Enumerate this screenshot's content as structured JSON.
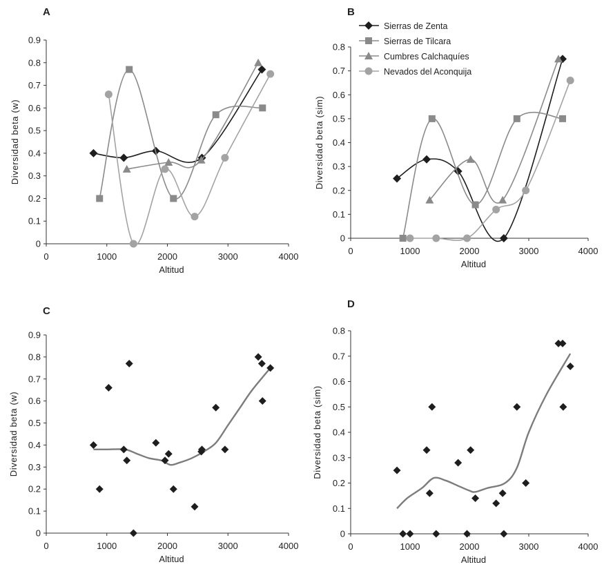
{
  "colors": {
    "dark": "#1e1e1e",
    "grey": "#8a8a8a",
    "grey_light": "#a3a3a3",
    "axis": "#333333"
  },
  "legend": {
    "items": [
      {
        "label": "Sierras de Zenta",
        "marker": "diamond",
        "color": "#1e1e1e"
      },
      {
        "label": "Sierras de Tilcara",
        "marker": "square",
        "color": "#8a8a8a"
      },
      {
        "label": "Cumbres Calchaquíes",
        "marker": "triangle",
        "color": "#8a8a8a"
      },
      {
        "label": "Nevados del Aconquija",
        "marker": "circle",
        "color": "#a3a3a3"
      }
    ]
  },
  "chart_data": [
    {
      "panel": "A",
      "type": "line",
      "xlabel": "Altitud",
      "ylabel": "Diversidad beta (w)",
      "xlim": [
        0,
        4000
      ],
      "ylim": [
        0,
        0.9
      ],
      "xticks": [
        0,
        1000,
        2000,
        3000,
        4000
      ],
      "yticks": [
        0,
        0.1,
        0.2,
        0.3,
        0.4,
        0.5,
        0.6,
        0.7,
        0.8,
        0.9
      ],
      "series": [
        {
          "name": "Sierras de Zenta",
          "marker": "diamond",
          "x": [
            780,
            1280,
            1810,
            2570,
            3560
          ],
          "y": [
            0.4,
            0.38,
            0.41,
            0.38,
            0.77
          ]
        },
        {
          "name": "Sierras de Tilcara",
          "marker": "square",
          "x": [
            880,
            1370,
            2100,
            2800,
            3570
          ],
          "y": [
            0.2,
            0.77,
            0.2,
            0.57,
            0.6
          ]
        },
        {
          "name": "Cumbres Calchaquíes",
          "marker": "triangle",
          "x": [
            1330,
            2020,
            2560,
            3500
          ],
          "y": [
            0.33,
            0.36,
            0.37,
            0.8
          ]
        },
        {
          "name": "Nevados del Aconquija",
          "marker": "circle",
          "x": [
            1030,
            1440,
            1960,
            2450,
            2950,
            3700
          ],
          "y": [
            0.66,
            0.0,
            0.33,
            0.12,
            0.38,
            0.75
          ]
        }
      ]
    },
    {
      "panel": "B",
      "type": "line",
      "xlabel": "Altitud",
      "ylabel": "Diversidad beta (sim)",
      "xlim": [
        0,
        4000
      ],
      "ylim": [
        0,
        0.8
      ],
      "xticks": [
        0,
        1000,
        2000,
        3000,
        4000
      ],
      "yticks": [
        0,
        0.1,
        0.2,
        0.3,
        0.4,
        0.5,
        0.6,
        0.7,
        0.8
      ],
      "series": [
        {
          "name": "Sierras de Zenta",
          "marker": "diamond",
          "x": [
            780,
            1280,
            1810,
            2580,
            3570
          ],
          "y": [
            0.25,
            0.33,
            0.28,
            0.0,
            0.75
          ]
        },
        {
          "name": "Sierras de Tilcara",
          "marker": "square",
          "x": [
            880,
            1370,
            2100,
            2800,
            3570
          ],
          "y": [
            0.0,
            0.5,
            0.14,
            0.5,
            0.5
          ]
        },
        {
          "name": "Cumbres Calchaquíes",
          "marker": "triangle",
          "x": [
            1330,
            2020,
            2560,
            3500
          ],
          "y": [
            0.16,
            0.33,
            0.16,
            0.75
          ]
        },
        {
          "name": "Nevados del Aconquija",
          "marker": "circle",
          "x": [
            1000,
            1440,
            1960,
            2450,
            2950,
            3700
          ],
          "y": [
            0.0,
            0.0,
            0.0,
            0.12,
            0.2,
            0.66
          ]
        }
      ]
    },
    {
      "panel": "C",
      "type": "scatter",
      "xlabel": "Altitud",
      "ylabel": "Diversidad beta (w)",
      "xlim": [
        0,
        4000
      ],
      "ylim": [
        0,
        0.9
      ],
      "xticks": [
        0,
        1000,
        2000,
        3000,
        4000
      ],
      "yticks": [
        0,
        0.1,
        0.2,
        0.3,
        0.4,
        0.5,
        0.6,
        0.7,
        0.8,
        0.9
      ],
      "points": {
        "x": [
          780,
          880,
          1030,
          1280,
          1330,
          1370,
          1440,
          1810,
          1960,
          2020,
          2100,
          2450,
          2560,
          2570,
          2800,
          2950,
          3500,
          3560,
          3570,
          3700
        ],
        "y": [
          0.4,
          0.2,
          0.66,
          0.38,
          0.33,
          0.77,
          0.0,
          0.41,
          0.33,
          0.36,
          0.2,
          0.12,
          0.37,
          0.38,
          0.57,
          0.38,
          0.8,
          0.77,
          0.6,
          0.75
        ]
      },
      "trend": {
        "x": [
          780,
          1000,
          1300,
          1500,
          1700,
          1900,
          2050,
          2200,
          2400,
          2600,
          2800,
          3000,
          3200,
          3400,
          3700
        ],
        "y": [
          0.38,
          0.38,
          0.38,
          0.36,
          0.34,
          0.33,
          0.31,
          0.32,
          0.34,
          0.37,
          0.41,
          0.49,
          0.57,
          0.65,
          0.75
        ]
      }
    },
    {
      "panel": "D",
      "type": "scatter",
      "xlabel": "Altitud",
      "ylabel": "Diversidad beta (sim)",
      "xlim": [
        0,
        4000
      ],
      "ylim": [
        0,
        0.8
      ],
      "xticks": [
        0,
        1000,
        2000,
        3000,
        4000
      ],
      "yticks": [
        0,
        0.1,
        0.2,
        0.3,
        0.4,
        0.5,
        0.6,
        0.7,
        0.8
      ],
      "points": {
        "x": [
          780,
          880,
          1000,
          1280,
          1330,
          1370,
          1440,
          1810,
          1960,
          2020,
          2100,
          2450,
          2560,
          2580,
          2800,
          2950,
          3500,
          3570,
          3580,
          3700
        ],
        "y": [
          0.25,
          0.0,
          0.0,
          0.33,
          0.16,
          0.5,
          0.0,
          0.28,
          0.0,
          0.33,
          0.14,
          0.12,
          0.16,
          0.0,
          0.5,
          0.2,
          0.75,
          0.75,
          0.5,
          0.66
        ]
      },
      "trend": {
        "x": [
          780,
          950,
          1200,
          1400,
          1600,
          1800,
          2000,
          2100,
          2300,
          2600,
          2800,
          3000,
          3300,
          3700
        ],
        "y": [
          0.1,
          0.14,
          0.18,
          0.22,
          0.21,
          0.19,
          0.17,
          0.165,
          0.18,
          0.2,
          0.26,
          0.4,
          0.55,
          0.71
        ]
      }
    }
  ]
}
